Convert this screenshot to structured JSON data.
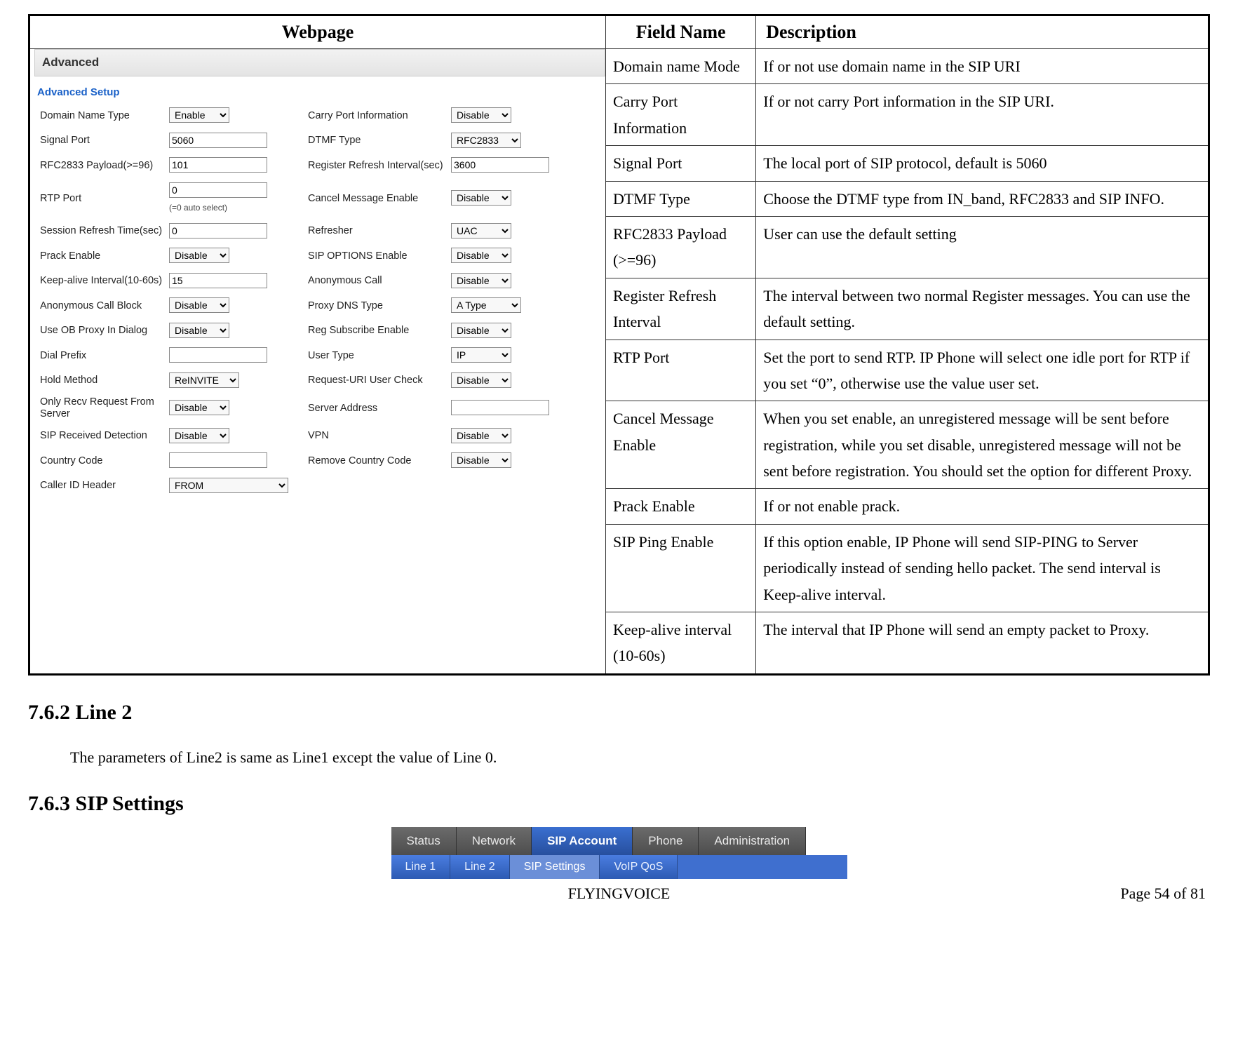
{
  "headers": {
    "webpage": "Webpage",
    "fieldname": "Field Name",
    "description": "Description"
  },
  "rows": [
    {
      "field": "Domain name Mode",
      "desc": "If or not use domain name in the SIP URI"
    },
    {
      "field": "Carry Port Information",
      "desc": "If or not carry Port information in the SIP URI."
    },
    {
      "field": "Signal Port",
      "desc": "The local port of SIP protocol, default is 5060"
    },
    {
      "field": "DTMF Type",
      "desc": "Choose the DTMF type from IN_band, RFC2833 and SIP INFO."
    },
    {
      "field": "RFC2833 Payload (>=96)",
      "desc": "User can use the default setting"
    },
    {
      "field": "Register Refresh Interval",
      "desc": "The interval between two normal Register messages. You can use the default setting."
    },
    {
      "field": "RTP Port",
      "desc": "Set the port to send RTP. IP Phone will select one idle port for RTP if you set “0”, otherwise use the value user set."
    },
    {
      "field": "Cancel Message Enable",
      "desc": "When you set enable, an unregistered message will be sent before registration, while you set disable, unregistered message will not be sent before registration. You should set the option for different Proxy."
    },
    {
      "field": "Prack Enable",
      "desc": "If or not enable prack."
    },
    {
      "field": "SIP Ping Enable",
      "desc": "If this option enable, IP Phone will send SIP-PING to Server periodically instead of sending hello packet. The send interval is Keep-alive interval."
    },
    {
      "field": "Keep-alive interval (10-60s)",
      "desc": "The interval that IP Phone will send an empty packet to Proxy."
    }
  ],
  "panel": {
    "title": "Advanced",
    "subtitle": "Advanced Setup",
    "left": [
      {
        "label": "Domain Name Type",
        "type": "select",
        "value": "Enable"
      },
      {
        "label": "Signal Port",
        "type": "input",
        "value": "5060"
      },
      {
        "label": "RFC2833 Payload(>=96)",
        "type": "input",
        "value": "101"
      },
      {
        "label": "RTP Port",
        "type": "input",
        "value": "0",
        "hint": "(=0 auto select)"
      },
      {
        "label": "Session Refresh Time(sec)",
        "type": "input",
        "value": "0"
      },
      {
        "label": "Prack Enable",
        "type": "select",
        "value": "Disable"
      },
      {
        "label": "Keep-alive Interval(10-60s)",
        "type": "input",
        "value": "15"
      },
      {
        "label": "Anonymous Call Block",
        "type": "select",
        "value": "Disable"
      },
      {
        "label": "Use OB Proxy In Dialog",
        "type": "select",
        "value": "Disable"
      },
      {
        "label": "Dial Prefix",
        "type": "input",
        "value": ""
      },
      {
        "label": "Hold Method",
        "type": "select",
        "value": "ReINVITE",
        "wide": true
      },
      {
        "label": "Only Recv Request From Server",
        "type": "select",
        "value": "Disable"
      },
      {
        "label": "SIP Received Detection",
        "type": "select",
        "value": "Disable"
      },
      {
        "label": "Country Code",
        "type": "input",
        "value": ""
      },
      {
        "label": "Caller ID Header",
        "type": "select",
        "value": "FROM",
        "xwide": true
      }
    ],
    "right": [
      {
        "label": "Carry Port Information",
        "type": "select",
        "value": "Disable"
      },
      {
        "label": "DTMF Type",
        "type": "select",
        "value": "RFC2833",
        "wide": true
      },
      {
        "label": "Register Refresh Interval(sec)",
        "type": "input",
        "value": "3600"
      },
      {
        "label": "Cancel Message Enable",
        "type": "select",
        "value": "Disable"
      },
      {
        "label": "Refresher",
        "type": "select",
        "value": "UAC"
      },
      {
        "label": "SIP OPTIONS Enable",
        "type": "select",
        "value": "Disable"
      },
      {
        "label": "Anonymous Call",
        "type": "select",
        "value": "Disable"
      },
      {
        "label": "Proxy DNS Type",
        "type": "select",
        "value": "A Type",
        "wide": true
      },
      {
        "label": "Reg Subscribe Enable",
        "type": "select",
        "value": "Disable"
      },
      {
        "label": "User Type",
        "type": "select",
        "value": "IP"
      },
      {
        "label": "Request-URI User Check",
        "type": "select",
        "value": "Disable"
      },
      {
        "label": "Server Address",
        "type": "input",
        "value": ""
      },
      {
        "label": "VPN",
        "type": "select",
        "value": "Disable"
      },
      {
        "label": "Remove Country Code",
        "type": "select",
        "value": "Disable"
      }
    ]
  },
  "sections": {
    "s1": "7.6.2   Line 2",
    "s1_body": "The parameters of Line2 is same as Line1 except the value of Line 0.",
    "s2": "7.6.3   SIP Settings"
  },
  "tabs": {
    "row1": [
      "Status",
      "Network",
      "SIP Account",
      "Phone",
      "Administration"
    ],
    "row1_active": 2,
    "row2": [
      "Line 1",
      "Line 2",
      "SIP Settings",
      "VoIP QoS"
    ],
    "row2_active": 2
  },
  "footer": {
    "left": "FLYINGVOICE",
    "right": "Page 54 of 81"
  }
}
